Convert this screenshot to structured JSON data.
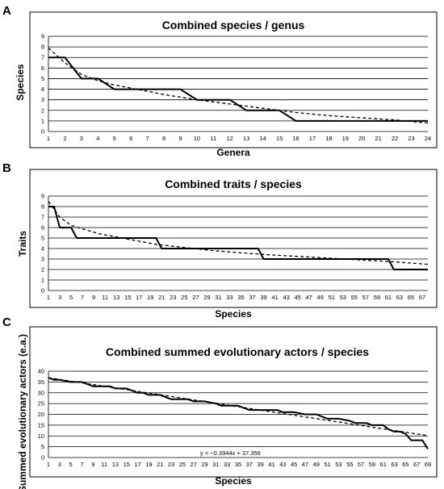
{
  "chart_data": [
    {
      "panel": "A",
      "type": "line",
      "title": "Combined species / genus",
      "xlabel": "Genera",
      "ylabel": "Species",
      "ylim": [
        0,
        9
      ],
      "x_ticks": [
        1,
        2,
        3,
        4,
        5,
        6,
        7,
        8,
        9,
        10,
        11,
        12,
        13,
        14,
        15,
        16,
        17,
        18,
        19,
        20,
        21,
        22,
        23,
        24
      ],
      "y_ticks": [
        0,
        1,
        2,
        3,
        4,
        5,
        6,
        7,
        8,
        9
      ],
      "grid": "horizontal",
      "series": [
        {
          "style": "solid",
          "x": [
            1,
            2,
            3,
            4,
            5,
            6,
            7,
            8,
            9,
            10,
            11,
            12,
            13,
            14,
            15,
            16,
            17,
            18,
            19,
            20,
            21,
            22,
            23,
            24
          ],
          "y": [
            7,
            7,
            5,
            5,
            4,
            4,
            4,
            4,
            4,
            3,
            3,
            3,
            2,
            2,
            2,
            1,
            1,
            1,
            1,
            1,
            1,
            1,
            1,
            1
          ]
        },
        {
          "style": "dashed",
          "trendline": "power",
          "x": [
            1,
            2,
            3,
            4,
            5,
            6,
            8,
            10,
            12,
            14,
            16,
            18,
            20,
            22,
            24
          ],
          "y": [
            7.9,
            6.5,
            5.4,
            4.8,
            4.4,
            4.1,
            3.5,
            3.0,
            2.6,
            2.2,
            1.8,
            1.5,
            1.3,
            1.1,
            0.8
          ]
        }
      ]
    },
    {
      "panel": "B",
      "type": "line",
      "title": "Combined traits / species",
      "xlabel": "Species",
      "ylabel": "Traits",
      "ylim": [
        0,
        9
      ],
      "xlim": [
        1,
        68
      ],
      "x_ticks": [
        1,
        3,
        5,
        7,
        9,
        11,
        13,
        15,
        17,
        19,
        21,
        23,
        25,
        27,
        29,
        31,
        33,
        35,
        37,
        39,
        41,
        43,
        45,
        47,
        49,
        51,
        53,
        55,
        57,
        59,
        61,
        63,
        65,
        67
      ],
      "y_ticks": [
        0,
        1,
        2,
        3,
        4,
        5,
        6,
        7,
        8,
        9
      ],
      "grid": "horizontal",
      "series": [
        {
          "style": "solid",
          "x": [
            1,
            2,
            3,
            5,
            6,
            7,
            20,
            21,
            38,
            39,
            61,
            62,
            68
          ],
          "y": [
            8,
            8,
            6,
            6,
            5,
            5,
            5,
            4,
            4,
            3,
            3,
            2,
            2
          ]
        },
        {
          "style": "dashed",
          "trendline": "power",
          "x": [
            1,
            3,
            5,
            10,
            15,
            20,
            30,
            40,
            50,
            60,
            68
          ],
          "y": [
            8.5,
            7.0,
            6.2,
            5.4,
            4.9,
            4.4,
            3.8,
            3.4,
            3.1,
            2.8,
            2.5
          ]
        }
      ]
    },
    {
      "panel": "C",
      "type": "line",
      "title": "Combined summed evolutionary actors / species",
      "xlabel": "Species",
      "ylabel": "Summed evolutionary actors (e.a.)",
      "ylim": [
        0,
        40
      ],
      "xlim": [
        1,
        69
      ],
      "x_ticks": [
        1,
        3,
        5,
        7,
        9,
        11,
        13,
        15,
        17,
        19,
        21,
        23,
        25,
        27,
        29,
        31,
        33,
        35,
        37,
        39,
        41,
        43,
        45,
        47,
        49,
        51,
        53,
        55,
        57,
        59,
        61,
        63,
        65,
        67,
        69
      ],
      "y_ticks": [
        0,
        5,
        10,
        15,
        20,
        25,
        30,
        35,
        40
      ],
      "grid": "horizontal",
      "trendline_equation": "y = −0.3944x + 37.356",
      "trendline": {
        "slope": -0.3944,
        "intercept": 37.356
      },
      "series": [
        {
          "style": "solid",
          "x": [
            1,
            2,
            3,
            5,
            7,
            8,
            9,
            10,
            12,
            13,
            15,
            16,
            17,
            18,
            19,
            20,
            21,
            22,
            23,
            24,
            26,
            27,
            28,
            29,
            31,
            32,
            33,
            35,
            36,
            37,
            39,
            40,
            42,
            43,
            45,
            47,
            48,
            49,
            51,
            52,
            53,
            55,
            56,
            57,
            58,
            59,
            60,
            61,
            62,
            63,
            64,
            65,
            66,
            67,
            68,
            69
          ],
          "y": [
            37,
            36,
            36,
            35,
            35,
            34,
            33,
            33,
            33,
            32,
            32,
            31,
            30,
            30,
            29,
            29,
            29,
            28,
            27,
            27,
            27,
            26,
            26,
            26,
            25,
            24,
            24,
            24,
            23,
            22,
            22,
            22,
            22,
            21,
            21,
            20,
            20,
            20,
            18,
            18,
            18,
            17,
            16,
            16,
            16,
            15,
            15,
            15,
            13,
            12,
            12,
            11,
            8,
            8,
            8,
            4
          ]
        }
      ]
    }
  ],
  "panel_labels": {
    "a": "A",
    "b": "B",
    "c": "C"
  }
}
